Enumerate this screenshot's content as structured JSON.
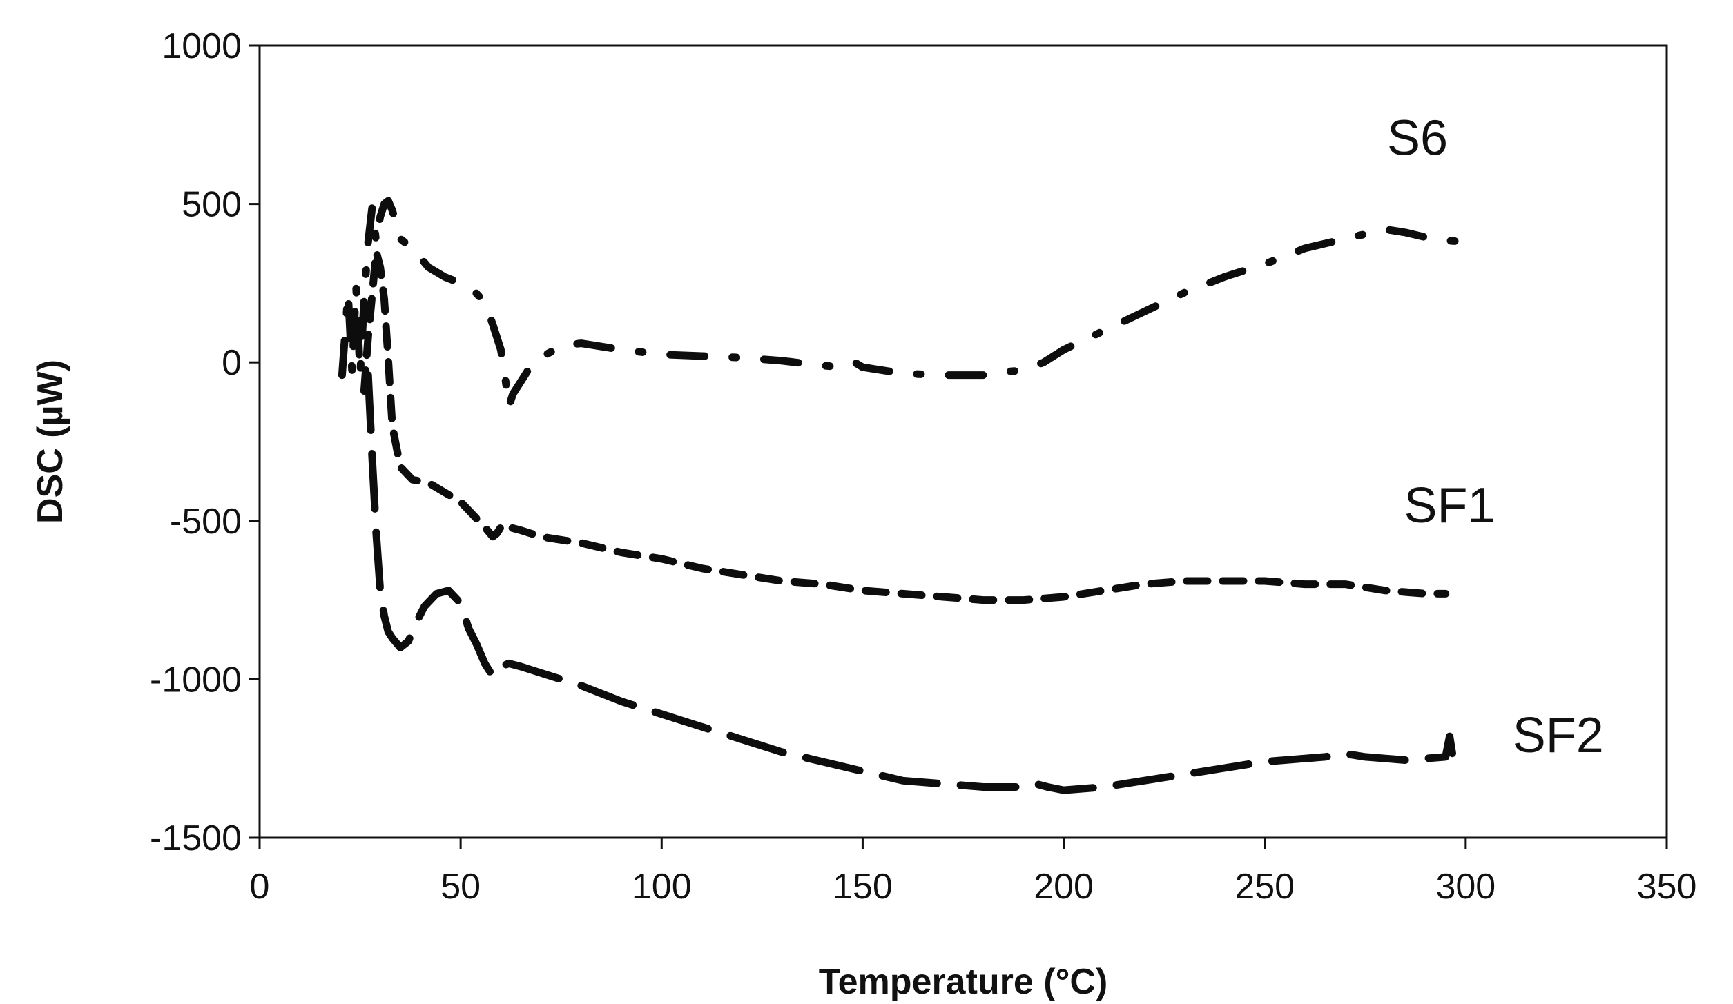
{
  "chart_data": {
    "type": "line",
    "title": "",
    "xlabel": "Temperature (°C)",
    "ylabel": "DSC (µW)",
    "xlim": [
      0,
      350
    ],
    "ylim": [
      -1500,
      1000
    ],
    "xticks": [
      0,
      50,
      100,
      150,
      200,
      250,
      300,
      350
    ],
    "yticks": [
      -1500,
      -1000,
      -500,
      0,
      500,
      1000
    ],
    "xtick_labels": [
      "0",
      "50",
      "100",
      "150",
      "200",
      "250",
      "300",
      "350"
    ],
    "ytick_labels": [
      "-1500",
      "-1000",
      "-500",
      "0",
      "500",
      "1000"
    ],
    "grid": false,
    "series": [
      {
        "name": "S6",
        "style": "dash-dot",
        "x": [
          20.5,
          22,
          23,
          24,
          25,
          26,
          27,
          28,
          29,
          30,
          31,
          32,
          33,
          35,
          38,
          42,
          46,
          50,
          53,
          56,
          58,
          60,
          61,
          62,
          63,
          65,
          68,
          72,
          76,
          80,
          90,
          100,
          110,
          120,
          130,
          140,
          145,
          148,
          150,
          160,
          170,
          180,
          185,
          190,
          195,
          200,
          210,
          220,
          230,
          240,
          250,
          260,
          270,
          280,
          285,
          290,
          295,
          300
        ],
        "values": [
          -40,
          220,
          -30,
          240,
          -40,
          200,
          380,
          490,
          380,
          460,
          500,
          510,
          480,
          390,
          360,
          300,
          270,
          250,
          230,
          190,
          120,
          40,
          -40,
          -140,
          -100,
          -60,
          0,
          30,
          55,
          60,
          40,
          25,
          20,
          15,
          5,
          -10,
          -15,
          0,
          -15,
          -35,
          -40,
          -40,
          -30,
          -25,
          0,
          40,
          100,
          160,
          220,
          270,
          310,
          360,
          390,
          420,
          410,
          395,
          385,
          380
        ]
      },
      {
        "name": "SF1",
        "style": "short-dash",
        "x": [
          26,
          27,
          29,
          30,
          31,
          32,
          33,
          35,
          38,
          42,
          46,
          50,
          53,
          56,
          58,
          59,
          60,
          61,
          62,
          65,
          70,
          80,
          90,
          100,
          110,
          120,
          130,
          140,
          150,
          160,
          170,
          180,
          190,
          200,
          210,
          220,
          230,
          240,
          250,
          260,
          270,
          280,
          290,
          295
        ],
        "values": [
          -90,
          80,
          350,
          300,
          200,
          10,
          -200,
          -330,
          -370,
          -380,
          -410,
          -440,
          -480,
          -520,
          -550,
          -540,
          -520,
          -510,
          -520,
          -530,
          -550,
          -570,
          -600,
          -620,
          -650,
          -670,
          -690,
          -700,
          -720,
          -730,
          -740,
          -750,
          -750,
          -740,
          -720,
          -700,
          -690,
          -690,
          -690,
          -700,
          -700,
          -720,
          -730,
          -730
        ]
      },
      {
        "name": "SF2",
        "style": "long-dash",
        "x": [
          27,
          28,
          29,
          30,
          31,
          32,
          33,
          35,
          37,
          39,
          41,
          44,
          47,
          50,
          52,
          54,
          56,
          58,
          60,
          62,
          65,
          70,
          80,
          90,
          100,
          110,
          120,
          130,
          140,
          150,
          160,
          170,
          180,
          185,
          190,
          193,
          196,
          200,
          210,
          220,
          230,
          240,
          250,
          260,
          265,
          270,
          275,
          280,
          285,
          290,
          295,
          296,
          297
        ],
        "values": [
          -40,
          -300,
          -540,
          -720,
          -800,
          -850,
          -870,
          -900,
          -880,
          -820,
          -770,
          -730,
          -720,
          -760,
          -840,
          -890,
          -950,
          -990,
          -960,
          -950,
          -960,
          -980,
          -1020,
          -1070,
          -1110,
          -1150,
          -1190,
          -1230,
          -1260,
          -1290,
          -1320,
          -1330,
          -1340,
          -1340,
          -1340,
          -1330,
          -1340,
          -1350,
          -1340,
          -1320,
          -1300,
          -1280,
          -1260,
          -1250,
          -1245,
          -1235,
          -1245,
          -1250,
          -1255,
          -1250,
          -1245,
          -1180,
          -1260
        ]
      }
    ],
    "annotations": [
      {
        "text": "S6",
        "x": 288,
        "y": 655
      },
      {
        "text": "SF1",
        "x": 296,
        "y": -505
      },
      {
        "text": "SF2",
        "x": 323,
        "y": -1230
      }
    ]
  }
}
